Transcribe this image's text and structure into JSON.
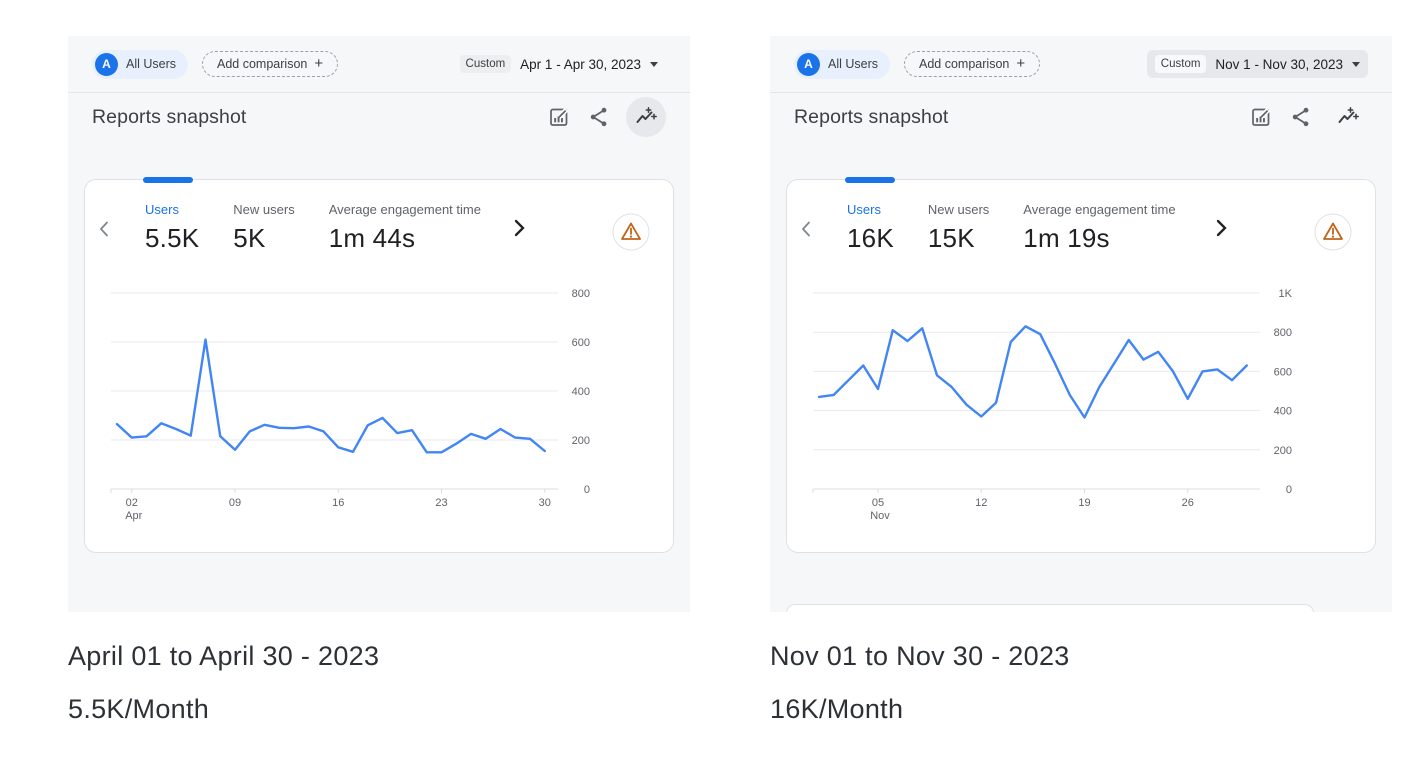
{
  "colors": {
    "brand_blue": "#1a73e8",
    "chart_line_blue": "#4285f4",
    "panel_background": "#f6f7f9",
    "card_border": "#dfe1e5",
    "text_primary": "#202124",
    "text_secondary": "#5f6368",
    "warning_orange": "#d56e0c",
    "audience_chip_bg": "#e8f0fe"
  },
  "icons": {
    "avatar": "letter-A-circle",
    "plus": "+",
    "caret_down": "caret-down-triangle",
    "customize_report": "bar-chart-with-pencil",
    "share": "share-nodes",
    "insights": "sparkline-with-sparkles",
    "chevron_left": "angle-left",
    "chevron_right": "angle-right",
    "warning": "orange-triangle-exclamation-in-circle"
  },
  "panels": [
    {
      "id": "april",
      "header": {
        "avatar_letter": "A",
        "audience_label": "All Users",
        "add_comparison_label": "Add comparison",
        "plus": "+",
        "date_mode_label": "Custom",
        "date_range": "Apr 1 - Apr 30, 2023"
      },
      "title": "Reports snapshot",
      "metrics": [
        {
          "label": "Users",
          "value": "5.5K",
          "active": true
        },
        {
          "label": "New users",
          "value": "5K",
          "active": false
        },
        {
          "label": "Average engagement time",
          "value": "1m 44s",
          "active": false
        }
      ],
      "chart_data": {
        "type": "line",
        "series": "Users per day (April 2023)",
        "x": [
          1,
          2,
          3,
          4,
          5,
          6,
          7,
          8,
          9,
          10,
          11,
          12,
          13,
          14,
          15,
          16,
          17,
          18,
          19,
          20,
          21,
          22,
          23,
          24,
          25,
          26,
          27,
          28,
          29,
          30
        ],
        "values": [
          265,
          210,
          215,
          268,
          245,
          218,
          610,
          215,
          160,
          235,
          262,
          250,
          248,
          255,
          235,
          170,
          152,
          260,
          290,
          228,
          240,
          150,
          150,
          185,
          225,
          205,
          245,
          210,
          205,
          155
        ],
        "ylim": [
          0,
          800
        ],
        "yticks": [
          {
            "v": 0,
            "label": "0"
          },
          {
            "v": 200,
            "label": "200"
          },
          {
            "v": 400,
            "label": "400"
          },
          {
            "v": 600,
            "label": "600"
          },
          {
            "v": 800,
            "label": "800"
          }
        ],
        "xticks": [
          {
            "x": 2,
            "label": "02",
            "sub": "Apr"
          },
          {
            "x": 9,
            "label": "09"
          },
          {
            "x": 16,
            "label": "16"
          },
          {
            "x": 23,
            "label": "23"
          },
          {
            "x": 30,
            "label": "30"
          }
        ],
        "line_color": "#4285f4",
        "grid": true,
        "y_axis_side": "right",
        "legend": "none"
      }
    },
    {
      "id": "november",
      "header": {
        "avatar_letter": "A",
        "audience_label": "All Users",
        "add_comparison_label": "Add comparison",
        "plus": "+",
        "date_mode_label": "Custom",
        "date_range": "Nov 1 - Nov 30, 2023"
      },
      "title": "Reports snapshot",
      "metrics": [
        {
          "label": "Users",
          "value": "16K",
          "active": true
        },
        {
          "label": "New users",
          "value": "15K",
          "active": false
        },
        {
          "label": "Average engagement time",
          "value": "1m 19s",
          "active": false
        }
      ],
      "chart_data": {
        "type": "line",
        "series": "Users per day (November 2023)",
        "x": [
          1,
          2,
          3,
          4,
          5,
          6,
          7,
          8,
          9,
          10,
          11,
          12,
          13,
          14,
          15,
          16,
          17,
          18,
          19,
          20,
          21,
          22,
          23,
          24,
          25,
          26,
          27,
          28,
          29,
          30
        ],
        "values": [
          470,
          480,
          555,
          630,
          510,
          810,
          755,
          820,
          580,
          520,
          430,
          370,
          440,
          750,
          830,
          790,
          640,
          480,
          365,
          520,
          640,
          760,
          660,
          700,
          600,
          460,
          600,
          610,
          555,
          630
        ],
        "ylim": [
          0,
          1000
        ],
        "yticks": [
          {
            "v": 0,
            "label": "0"
          },
          {
            "v": 200,
            "label": "200"
          },
          {
            "v": 400,
            "label": "400"
          },
          {
            "v": 600,
            "label": "600"
          },
          {
            "v": 800,
            "label": "800"
          },
          {
            "v": 1000,
            "label": "1K"
          }
        ],
        "xticks": [
          {
            "x": 5,
            "label": "05",
            "sub": "Nov"
          },
          {
            "x": 12,
            "label": "12"
          },
          {
            "x": 19,
            "label": "19"
          },
          {
            "x": 26,
            "label": "26"
          }
        ],
        "line_color": "#4285f4",
        "grid": true,
        "y_axis_side": "right",
        "legend": "none"
      }
    }
  ],
  "captions": [
    {
      "line1": "April 01 to April 30 - 2023",
      "line2": "5.5K/Month"
    },
    {
      "line1": "Nov 01 to Nov 30 - 2023",
      "line2": "16K/Month"
    }
  ]
}
